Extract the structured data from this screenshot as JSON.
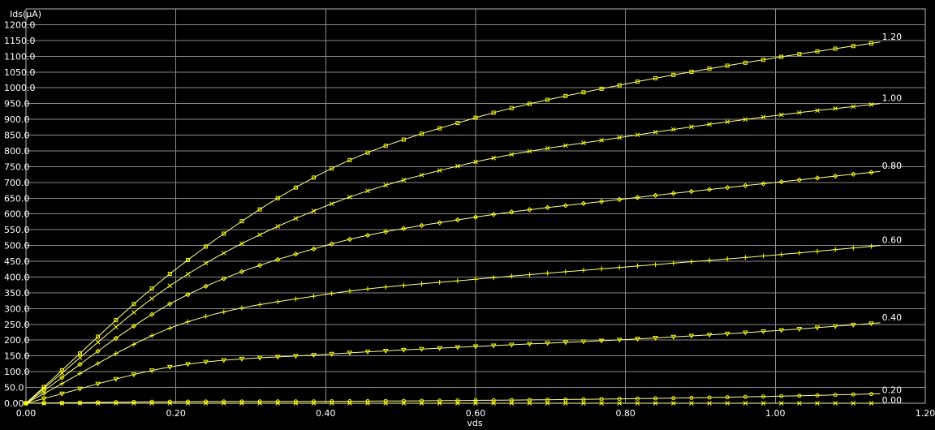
{
  "chart_data": {
    "type": "line",
    "xlabel": "vds",
    "ylabel": "Ids(µA)",
    "xlim": [
      0,
      1.2
    ],
    "ylim": [
      0,
      1250
    ],
    "x_ticks": [
      "0.00",
      "0.20",
      "0.40",
      "0.60",
      "0.80",
      "1.00",
      "1.20"
    ],
    "y_ticks": [
      "0.00",
      "50.0",
      "100.0",
      "150.0",
      "200.0",
      "250.0",
      "300.0",
      "350.0",
      "400.0",
      "450.0",
      "500.0",
      "550.0",
      "600.0",
      "650.0",
      "700.0",
      "750.0",
      "800.0",
      "850.0",
      "900.0",
      "950.0",
      "1000.0",
      "1050.0",
      "1100.0",
      "1150.0",
      "1200.0"
    ],
    "grid": true,
    "x": [
      0,
      0.2,
      0.4,
      0.6,
      0.8,
      1.0,
      1.14
    ],
    "series": [
      {
        "label": "1.20",
        "marker": "square",
        "values": [
          0,
          425,
          735,
          905,
          1012,
          1095,
          1145
        ]
      },
      {
        "label": "1.00",
        "marker": "x",
        "values": [
          0,
          385,
          625,
          765,
          845,
          912,
          950
        ]
      },
      {
        "label": "0.80",
        "marker": "diamond",
        "values": [
          0,
          325,
          500,
          590,
          648,
          700,
          735
        ]
      },
      {
        "label": "0.60",
        "marker": "plus",
        "values": [
          0,
          245,
          345,
          393,
          432,
          470,
          500
        ]
      },
      {
        "label": "0.40",
        "marker": "triangle",
        "values": [
          0,
          118,
          155,
          180,
          202,
          230,
          255
        ]
      },
      {
        "label": "0.20",
        "marker": "circle",
        "values": [
          0,
          5,
          6,
          9,
          14,
          22,
          30
        ]
      },
      {
        "label": "0.00",
        "marker": "x",
        "values": [
          0,
          0,
          0,
          0,
          0,
          0,
          0
        ]
      }
    ],
    "colors": {
      "background": "#000000",
      "grid": "#8a8a8a",
      "curve": "#ffff8c",
      "marker": "#ffff00",
      "text": "#ffffff"
    }
  }
}
